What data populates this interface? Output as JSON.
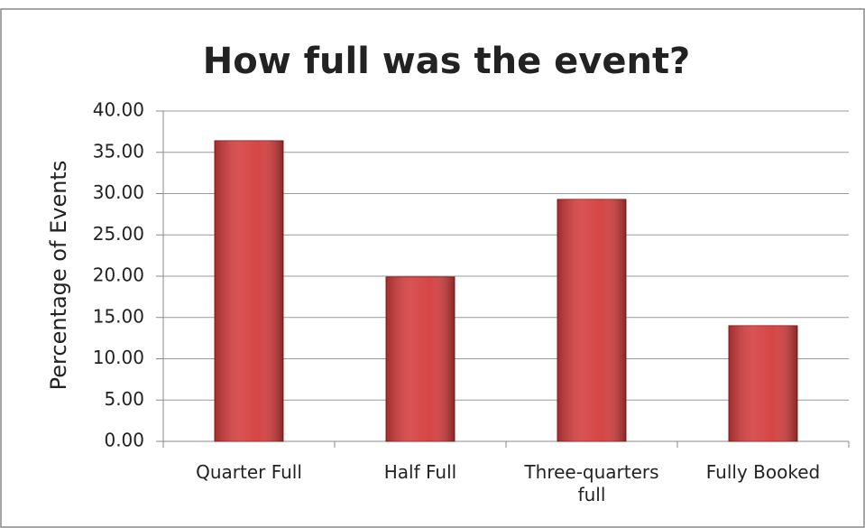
{
  "chart_data": {
    "type": "bar",
    "title": "How full was the event?",
    "y_axis_label": "Percentage of Events",
    "categories": [
      "Quarter Full",
      "Half Full",
      "Three-quarters full",
      "Fully Booked"
    ],
    "values": [
      36.4,
      19.9,
      29.3,
      14.0
    ],
    "color": "#d43c3c",
    "ylim": [
      0,
      40
    ],
    "yticks": [
      {
        "value": 0,
        "label": "0.00"
      },
      {
        "value": 5,
        "label": "5.00"
      },
      {
        "value": 10,
        "label": "10.00"
      },
      {
        "value": 15,
        "label": "15.00"
      },
      {
        "value": 20,
        "label": "20.00"
      },
      {
        "value": 25,
        "label": "25.00"
      },
      {
        "value": 30,
        "label": "30.00"
      },
      {
        "value": 35,
        "label": "35.00"
      },
      {
        "value": 40,
        "label": "40.00"
      }
    ],
    "grid": true
  }
}
